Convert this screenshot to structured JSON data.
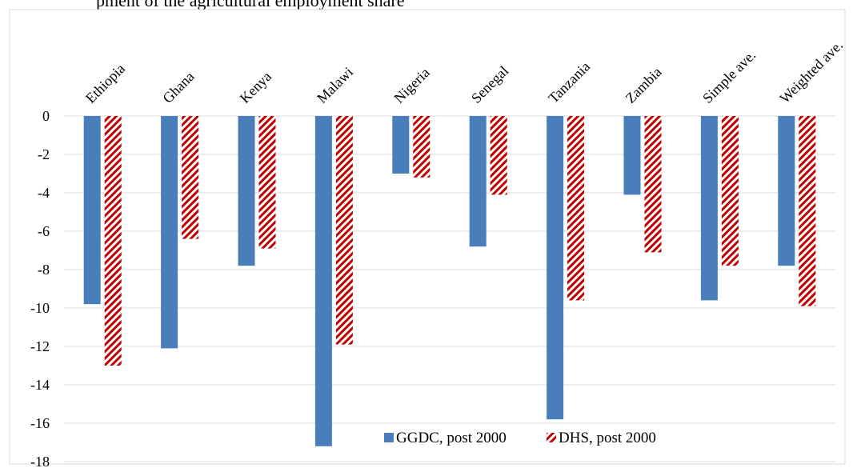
{
  "top_text": "pment of the agricultural employment share",
  "chart_data": {
    "type": "bar",
    "categories": [
      "Ethiopia",
      "Ghana",
      "Kenya",
      "Malawi",
      "Nigeria",
      "Senegal",
      "Tanzania",
      "Zambia",
      "Simple ave.",
      "Weighted ave."
    ],
    "series": [
      {
        "name": "GGDC, post 2000",
        "values": [
          -9.8,
          -12.1,
          -7.8,
          -17.2,
          -3.0,
          -6.8,
          -15.8,
          -4.1,
          -9.6,
          -7.8
        ],
        "color": "#4a7ebb"
      },
      {
        "name": "DHS, post 2000",
        "values": [
          -13.0,
          -6.4,
          -6.9,
          -11.9,
          -3.2,
          -4.1,
          -9.6,
          -7.1,
          -7.8,
          -9.9
        ],
        "color": "#c00000",
        "pattern": "diagonal-hatch"
      }
    ],
    "ylim": [
      -18,
      0
    ],
    "yticks": [
      0,
      -2,
      -4,
      -6,
      -8,
      -10,
      -12,
      -14,
      -16,
      -18
    ],
    "grid": true,
    "legend_position": "bottom-right"
  }
}
